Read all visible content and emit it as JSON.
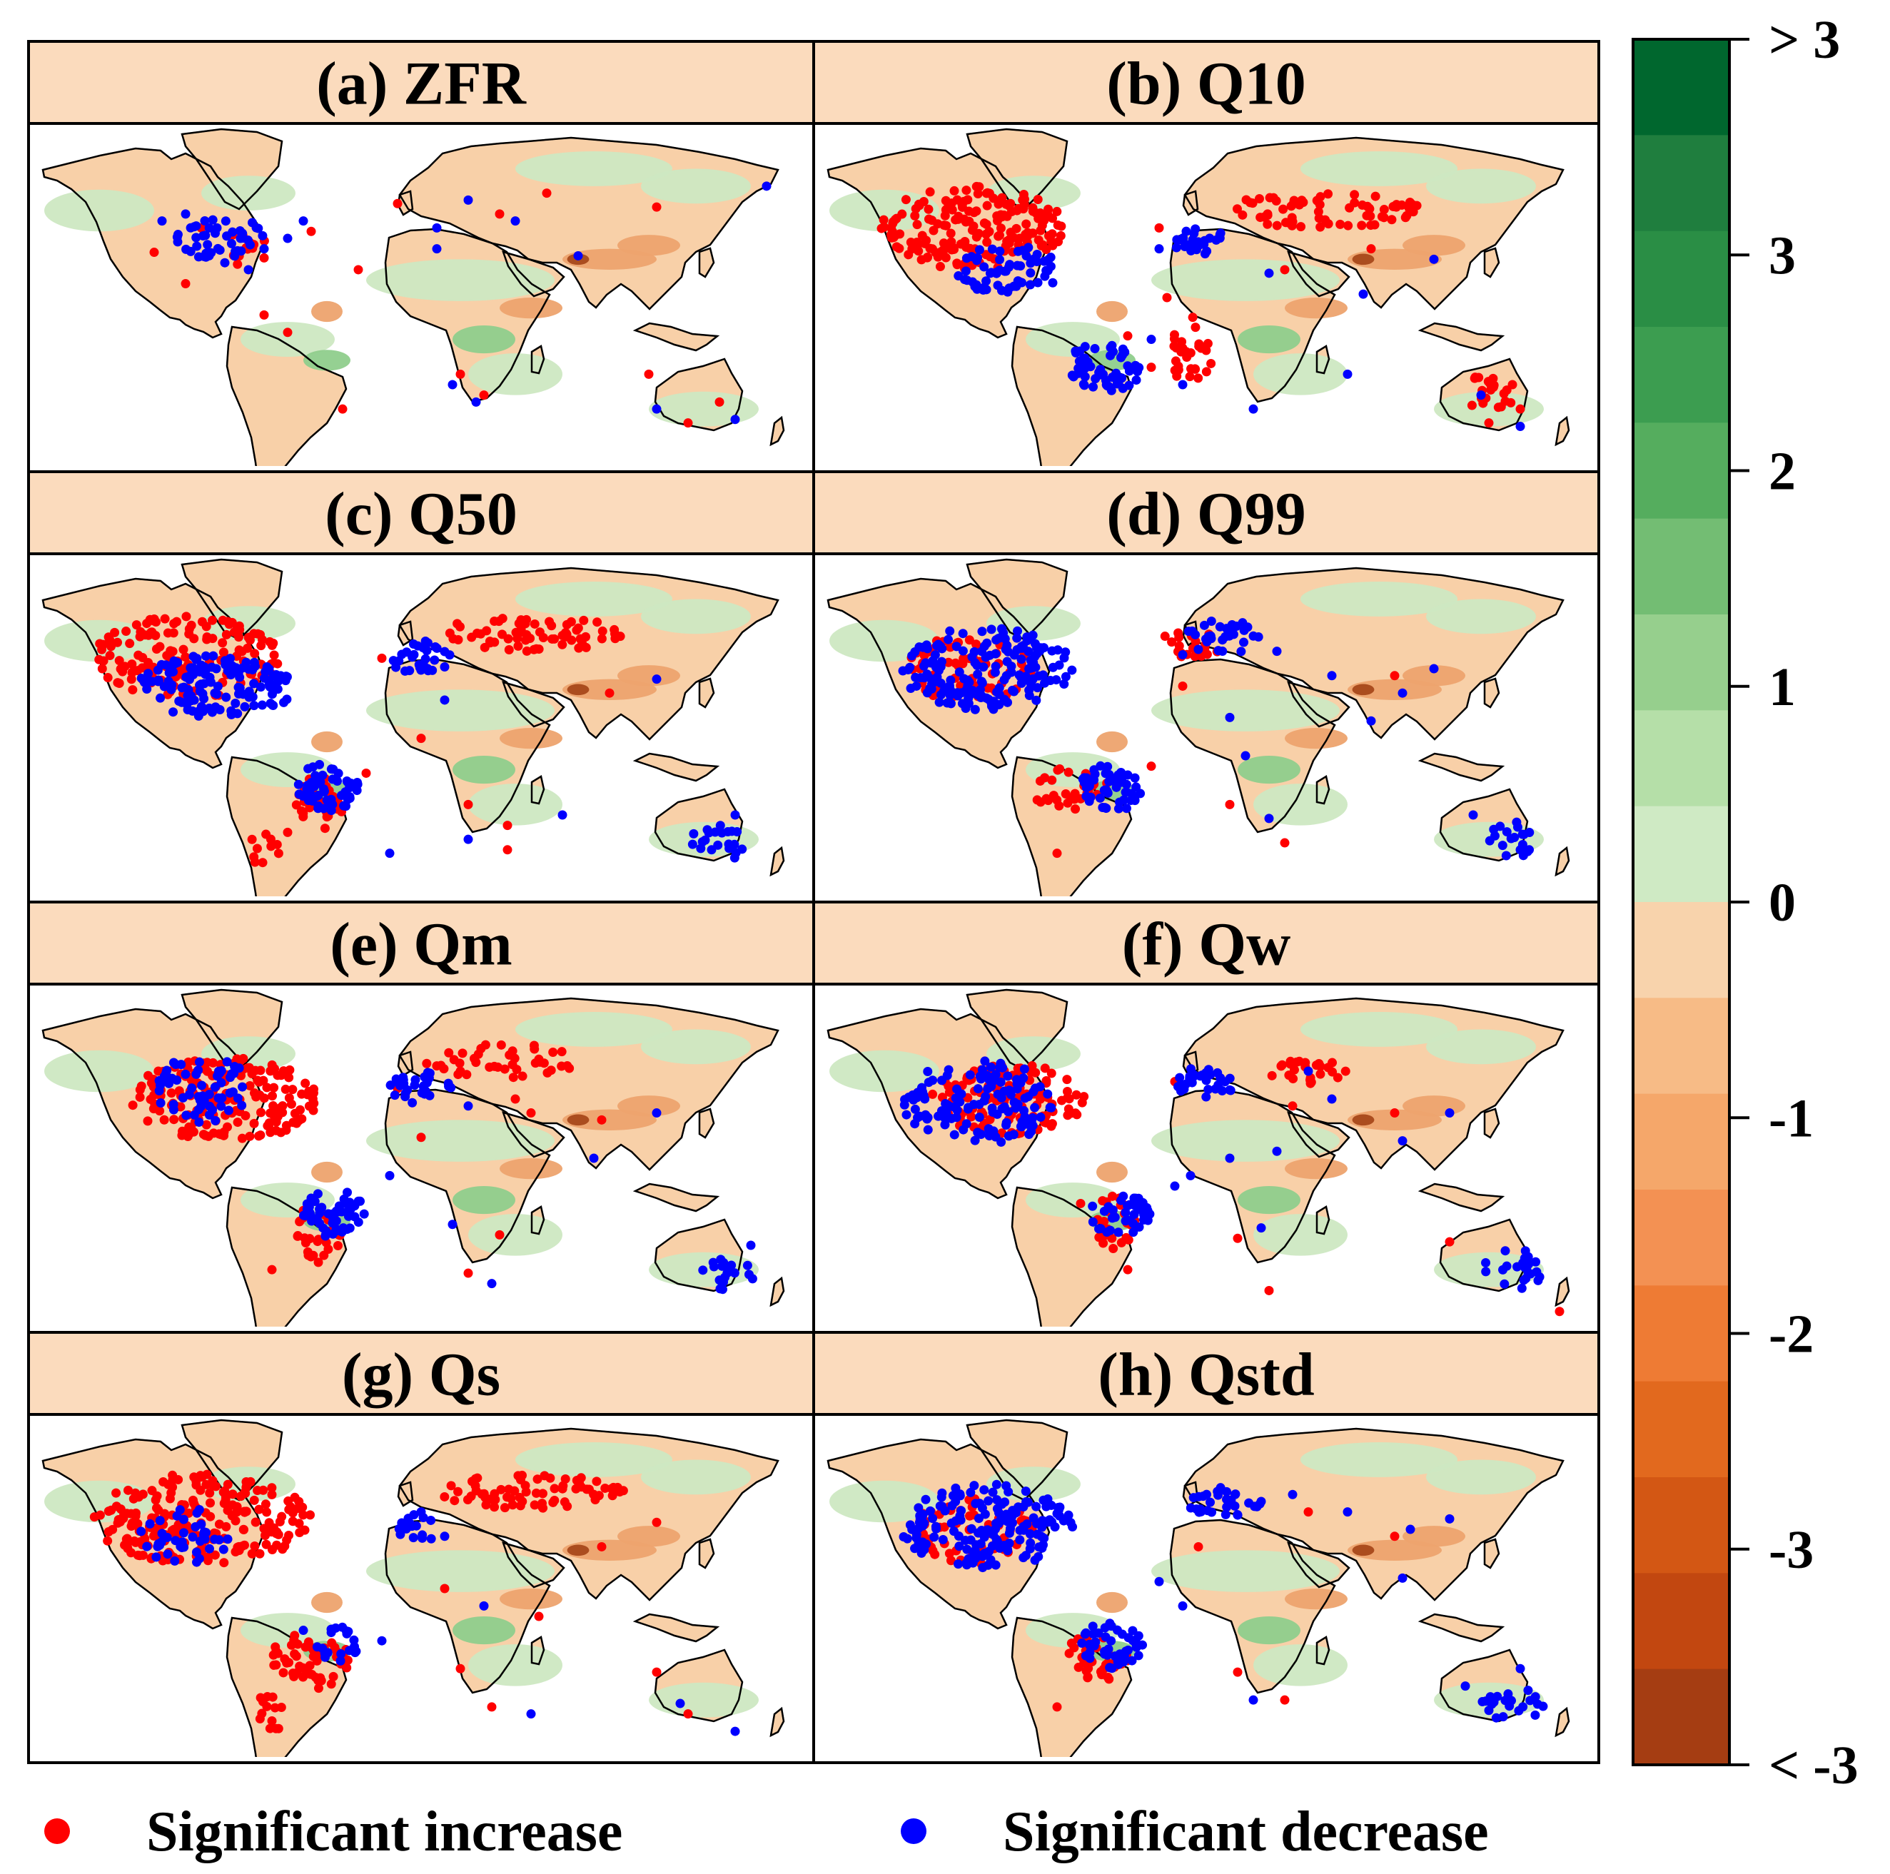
{
  "panels": [
    {
      "title": "(a) ZFR",
      "red": [
        [
          0.26,
          0.32
        ],
        [
          0.16,
          0.37
        ],
        [
          0.42,
          0.42
        ],
        [
          0.2,
          0.46
        ],
        [
          0.36,
          0.31
        ],
        [
          0.22,
          0.3
        ],
        [
          0.3,
          0.55
        ],
        [
          0.33,
          0.6
        ],
        [
          0.55,
          0.72
        ],
        [
          0.58,
          0.78
        ],
        [
          0.79,
          0.72
        ],
        [
          0.84,
          0.86
        ],
        [
          0.88,
          0.8
        ],
        [
          0.4,
          0.82
        ],
        [
          0.6,
          0.26
        ],
        [
          0.66,
          0.2
        ],
        [
          0.8,
          0.24
        ],
        [
          0.47,
          0.23
        ]
      ],
      "blue": [
        [
          0.2,
          0.26
        ],
        [
          0.24,
          0.3
        ],
        [
          0.27,
          0.33
        ],
        [
          0.3,
          0.36
        ],
        [
          0.19,
          0.34
        ],
        [
          0.23,
          0.38
        ],
        [
          0.33,
          0.33
        ],
        [
          0.25,
          0.4
        ],
        [
          0.28,
          0.42
        ],
        [
          0.35,
          0.28
        ],
        [
          0.17,
          0.28
        ],
        [
          0.52,
          0.3
        ],
        [
          0.56,
          0.22
        ],
        [
          0.54,
          0.75
        ],
        [
          0.57,
          0.8
        ],
        [
          0.9,
          0.85
        ],
        [
          0.8,
          0.82
        ],
        [
          0.62,
          0.28
        ],
        [
          0.52,
          0.36
        ],
        [
          0.7,
          0.38
        ],
        [
          0.94,
          0.18
        ]
      ],
      "red_dense": [
        [
          0.27,
          0.36,
          0.04,
          0.05,
          12
        ]
      ],
      "blue_dense": [
        [
          0.24,
          0.33,
          0.06,
          0.07,
          40
        ]
      ]
    },
    {
      "title": "(b) Q10",
      "red": [
        [
          0.44,
          0.3
        ],
        [
          0.6,
          0.42
        ],
        [
          0.71,
          0.36
        ],
        [
          0.89,
          0.75
        ],
        [
          0.9,
          0.82
        ],
        [
          0.45,
          0.5
        ],
        [
          0.4,
          0.61
        ],
        [
          0.43,
          0.7
        ],
        [
          0.86,
          0.86
        ]
      ],
      "blue": [
        [
          0.44,
          0.36
        ],
        [
          0.58,
          0.43
        ],
        [
          0.7,
          0.49
        ],
        [
          0.85,
          0.78
        ],
        [
          0.9,
          0.87
        ],
        [
          0.56,
          0.82
        ],
        [
          0.68,
          0.72
        ],
        [
          0.43,
          0.62
        ],
        [
          0.47,
          0.75
        ],
        [
          0.79,
          0.39
        ]
      ],
      "red_dense": [
        [
          0.2,
          0.3,
          0.12,
          0.12,
          190
        ],
        [
          0.65,
          0.25,
          0.13,
          0.05,
          70
        ],
        [
          0.48,
          0.65,
          0.03,
          0.1,
          30
        ],
        [
          0.86,
          0.77,
          0.05,
          0.05,
          20
        ]
      ],
      "blue_dense": [
        [
          0.25,
          0.42,
          0.07,
          0.07,
          60
        ],
        [
          0.37,
          0.7,
          0.05,
          0.07,
          55
        ],
        [
          0.49,
          0.34,
          0.04,
          0.04,
          25
        ]
      ]
    },
    {
      "title": "(c) Q50",
      "red": [
        [
          0.45,
          0.3
        ],
        [
          0.56,
          0.72
        ],
        [
          0.61,
          0.78
        ],
        [
          0.74,
          0.4
        ],
        [
          0.43,
          0.63
        ],
        [
          0.5,
          0.53
        ],
        [
          0.61,
          0.85
        ],
        [
          0.33,
          0.8
        ]
      ],
      "blue": [
        [
          0.56,
          0.82
        ],
        [
          0.8,
          0.36
        ],
        [
          0.87,
          0.85
        ],
        [
          0.9,
          0.75
        ],
        [
          0.46,
          0.86
        ],
        [
          0.53,
          0.42
        ],
        [
          0.68,
          0.75
        ]
      ],
      "red_dense": [
        [
          0.2,
          0.3,
          0.12,
          0.12,
          150
        ],
        [
          0.64,
          0.23,
          0.12,
          0.05,
          65
        ],
        [
          0.37,
          0.72,
          0.03,
          0.08,
          35
        ],
        [
          0.3,
          0.85,
          0.02,
          0.05,
          10
        ]
      ],
      "blue_dense": [
        [
          0.24,
          0.38,
          0.1,
          0.09,
          140
        ],
        [
          0.38,
          0.67,
          0.04,
          0.07,
          55
        ],
        [
          0.5,
          0.3,
          0.04,
          0.05,
          30
        ],
        [
          0.88,
          0.83,
          0.04,
          0.05,
          20
        ]
      ]
    },
    {
      "title": "(d) Q99",
      "red": [
        [
          0.47,
          0.38
        ],
        [
          0.53,
          0.72
        ],
        [
          0.6,
          0.83
        ],
        [
          0.43,
          0.61
        ],
        [
          0.35,
          0.68
        ],
        [
          0.31,
          0.86
        ],
        [
          0.74,
          0.35
        ]
      ],
      "blue": [
        [
          0.59,
          0.28
        ],
        [
          0.66,
          0.35
        ],
        [
          0.75,
          0.4
        ],
        [
          0.79,
          0.33
        ],
        [
          0.47,
          0.29
        ],
        [
          0.53,
          0.47
        ],
        [
          0.58,
          0.76
        ],
        [
          0.84,
          0.75
        ],
        [
          0.9,
          0.85
        ],
        [
          0.55,
          0.58
        ],
        [
          0.71,
          0.48
        ]
      ],
      "red_dense": [
        [
          0.48,
          0.26,
          0.04,
          0.04,
          20
        ],
        [
          0.2,
          0.33,
          0.08,
          0.1,
          60
        ],
        [
          0.33,
          0.68,
          0.05,
          0.07,
          30
        ]
      ],
      "blue_dense": [
        [
          0.22,
          0.33,
          0.11,
          0.12,
          170
        ],
        [
          0.38,
          0.67,
          0.04,
          0.07,
          50
        ],
        [
          0.52,
          0.24,
          0.05,
          0.05,
          30
        ],
        [
          0.89,
          0.82,
          0.04,
          0.05,
          18
        ]
      ]
    },
    {
      "title": "(e) Qm",
      "red": [
        [
          0.47,
          0.3
        ],
        [
          0.55,
          0.25
        ],
        [
          0.62,
          0.33
        ],
        [
          0.64,
          0.37
        ],
        [
          0.73,
          0.39
        ],
        [
          0.6,
          0.72
        ],
        [
          0.56,
          0.83
        ],
        [
          0.35,
          0.65
        ],
        [
          0.31,
          0.82
        ],
        [
          0.5,
          0.44
        ]
      ],
      "blue": [
        [
          0.56,
          0.35
        ],
        [
          0.8,
          0.37
        ],
        [
          0.72,
          0.5
        ],
        [
          0.54,
          0.69
        ],
        [
          0.59,
          0.86
        ],
        [
          0.88,
          0.85
        ],
        [
          0.92,
          0.75
        ],
        [
          0.46,
          0.55
        ]
      ],
      "red_dense": [
        [
          0.25,
          0.33,
          0.12,
          0.12,
          180
        ],
        [
          0.6,
          0.22,
          0.1,
          0.05,
          40
        ],
        [
          0.37,
          0.72,
          0.03,
          0.08,
          30
        ]
      ],
      "blue_dense": [
        [
          0.22,
          0.3,
          0.06,
          0.1,
          60
        ],
        [
          0.39,
          0.66,
          0.04,
          0.07,
          55
        ],
        [
          0.5,
          0.3,
          0.04,
          0.05,
          30
        ],
        [
          0.89,
          0.83,
          0.04,
          0.05,
          18
        ]
      ]
    },
    {
      "title": "(f) Qw",
      "red": [
        [
          0.46,
          0.28
        ],
        [
          0.61,
          0.35
        ],
        [
          0.54,
          0.73
        ],
        [
          0.58,
          0.88
        ],
        [
          0.81,
          0.74
        ],
        [
          0.4,
          0.82
        ],
        [
          0.34,
          0.63
        ],
        [
          0.74,
          0.37
        ],
        [
          0.95,
          0.94
        ]
      ],
      "blue": [
        [
          0.53,
          0.5
        ],
        [
          0.57,
          0.7
        ],
        [
          0.81,
          0.37
        ],
        [
          0.75,
          0.45
        ],
        [
          0.59,
          0.48
        ],
        [
          0.66,
          0.33
        ],
        [
          0.63,
          0.25
        ],
        [
          0.91,
          0.83
        ],
        [
          0.48,
          0.55
        ],
        [
          0.46,
          0.58
        ]
      ],
      "red_dense": [
        [
          0.25,
          0.33,
          0.1,
          0.1,
          120
        ],
        [
          0.64,
          0.25,
          0.06,
          0.04,
          25
        ],
        [
          0.38,
          0.68,
          0.03,
          0.08,
          25
        ]
      ],
      "blue_dense": [
        [
          0.21,
          0.34,
          0.1,
          0.12,
          130
        ],
        [
          0.39,
          0.66,
          0.04,
          0.06,
          40
        ],
        [
          0.5,
          0.28,
          0.04,
          0.05,
          30
        ],
        [
          0.89,
          0.82,
          0.04,
          0.06,
          22
        ]
      ]
    },
    {
      "title": "(g) Qs",
      "red": [
        [
          0.55,
          0.73
        ],
        [
          0.59,
          0.84
        ],
        [
          0.8,
          0.74
        ],
        [
          0.65,
          0.58
        ],
        [
          0.73,
          0.38
        ],
        [
          0.8,
          0.31
        ],
        [
          0.84,
          0.86
        ],
        [
          0.53,
          0.5
        ],
        [
          0.31,
          0.88
        ]
      ],
      "blue": [
        [
          0.35,
          0.62
        ],
        [
          0.45,
          0.65
        ],
        [
          0.53,
          0.35
        ],
        [
          0.58,
          0.55
        ],
        [
          0.64,
          0.86
        ],
        [
          0.83,
          0.83
        ],
        [
          0.5,
          0.28
        ],
        [
          0.9,
          0.91
        ]
      ],
      "red_dense": [
        [
          0.22,
          0.3,
          0.14,
          0.13,
          220
        ],
        [
          0.64,
          0.22,
          0.12,
          0.05,
          70
        ],
        [
          0.36,
          0.7,
          0.05,
          0.09,
          55
        ],
        [
          0.31,
          0.85,
          0.02,
          0.06,
          12
        ]
      ],
      "blue_dense": [
        [
          0.2,
          0.35,
          0.06,
          0.08,
          40
        ],
        [
          0.39,
          0.66,
          0.03,
          0.06,
          20
        ],
        [
          0.5,
          0.33,
          0.03,
          0.05,
          15
        ]
      ]
    },
    {
      "title": "(h) Qstd",
      "red": [
        [
          0.49,
          0.38
        ],
        [
          0.54,
          0.74
        ],
        [
          0.6,
          0.82
        ],
        [
          0.36,
          0.67
        ],
        [
          0.31,
          0.84
        ],
        [
          0.74,
          0.35
        ],
        [
          0.63,
          0.28
        ]
      ],
      "blue": [
        [
          0.57,
          0.25
        ],
        [
          0.61,
          0.23
        ],
        [
          0.68,
          0.28
        ],
        [
          0.76,
          0.33
        ],
        [
          0.81,
          0.3
        ],
        [
          0.75,
          0.47
        ],
        [
          0.47,
          0.55
        ],
        [
          0.56,
          0.82
        ],
        [
          0.86,
          0.85
        ],
        [
          0.83,
          0.78
        ],
        [
          0.9,
          0.73
        ],
        [
          0.44,
          0.48
        ]
      ],
      "red_dense": [
        [
          0.2,
          0.34,
          0.08,
          0.1,
          55
        ],
        [
          0.36,
          0.7,
          0.04,
          0.07,
          30
        ]
      ],
      "blue_dense": [
        [
          0.22,
          0.32,
          0.11,
          0.12,
          170
        ],
        [
          0.38,
          0.66,
          0.04,
          0.07,
          45
        ],
        [
          0.52,
          0.25,
          0.05,
          0.05,
          30
        ],
        [
          0.89,
          0.83,
          0.04,
          0.05,
          20
        ]
      ]
    }
  ],
  "colorbar": {
    "labels": [
      "> 3",
      "3",
      "2",
      "1",
      "0",
      "-1",
      "-2",
      "-3",
      "< -3"
    ],
    "colors": [
      "#00672e",
      "#1f7e3e",
      "#2a8e45",
      "#3c9d50",
      "#55ad5e",
      "#73bd73",
      "#96cf8d",
      "#b5dfa8",
      "#cfeac4",
      "#f8d3ac",
      "#f7bb86",
      "#f5a76a",
      "#f39153",
      "#ee7b34",
      "#e2691e",
      "#d35714",
      "#c24710",
      "#a53d12"
    ]
  },
  "legend": {
    "increase_label": "Significant increase",
    "decrease_label": "Significant decrease",
    "increase_color": "#ff0000",
    "decrease_color": "#0000ff"
  },
  "map_colors": {
    "border": "#000000",
    "header_fill": "#fbdbbd",
    "land_base": "#f8d0a8",
    "green_light": "#cde8c2",
    "green_mid": "#8fcd8c",
    "orange_mid": "#eda36e",
    "orange_dark": "#a6481a",
    "ocean": "#ffffff"
  }
}
